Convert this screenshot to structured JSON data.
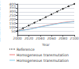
{
  "chart_data": {
    "type": "line",
    "xlabel": "Year",
    "ylabel": "Cumulative mass (t/GWe)",
    "x": [
      2000,
      2010,
      2020,
      2030,
      2040,
      2050,
      2060,
      2070,
      2080,
      2090,
      2100
    ],
    "series": [
      {
        "name": "Reference",
        "color": "#222222",
        "line_style": "dotted",
        "marker": "point",
        "values": [
          50,
          86,
          122,
          158,
          194,
          230,
          266,
          302,
          338,
          370,
          400
        ]
      },
      {
        "name": "Homogeneous transmutation",
        "color": "#f08080",
        "line_style": "solid",
        "values": [
          50,
          62,
          74,
          90,
          105,
          120,
          135,
          148,
          160,
          168,
          175
        ]
      },
      {
        "name": "Homogeneous transmutation",
        "color": "#87ceeb",
        "line_style": "solid",
        "values": [
          50,
          60,
          72,
          87,
          102,
          116,
          130,
          143,
          155,
          163,
          170
        ]
      }
    ],
    "xlim": [
      2000,
      2100
    ],
    "xticks": [
      2000,
      2020,
      2040,
      2060,
      2080,
      2100
    ],
    "ylim": [
      0,
      400
    ],
    "yticks": [
      50,
      100,
      150,
      200,
      250,
      300,
      350,
      400
    ],
    "grid": true,
    "legend": "bottom"
  }
}
